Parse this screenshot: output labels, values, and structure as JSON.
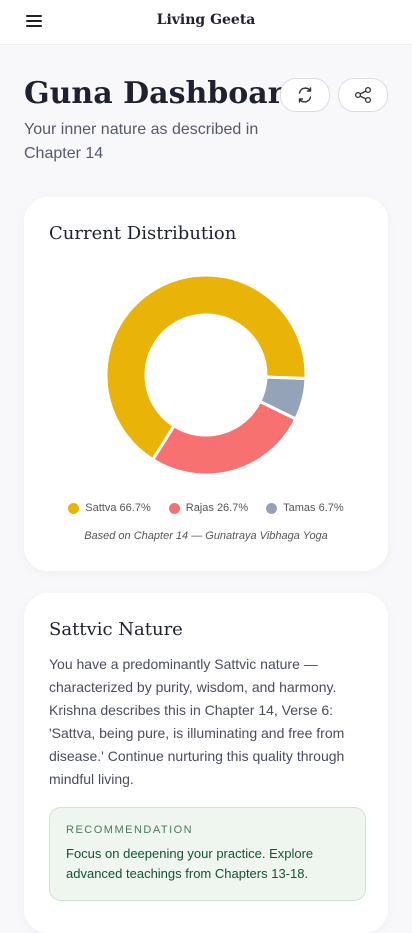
{
  "header": {
    "title": "Living Geeta"
  },
  "page": {
    "title": "Guna Dashboard",
    "subtitle": "Your inner nature as described in Chapter 14"
  },
  "chart_data": {
    "type": "pie",
    "title": "Current Distribution",
    "categories": [
      "Sattva",
      "Rajas",
      "Tamas"
    ],
    "values": [
      66.7,
      26.7,
      6.7
    ],
    "value_labels": [
      "66.7%",
      "26.7%",
      "6.7%"
    ],
    "colors": [
      "#eab308",
      "#f87171",
      "#94a3b8"
    ],
    "caption": "Based on Chapter 14 — Gunatraya Vibhaga Yoga"
  },
  "nature": {
    "title": "Sattvic Nature",
    "text": "You have a predominantly Sattvic nature — characterized by purity, wisdom, and harmony. Krishna describes this in Chapter 14, Verse 6: 'Sattva, being pure, is illuminating and free from disease.' Continue nurturing this quality through mindful living.",
    "recommendation": {
      "label": "RECOMMENDATION",
      "text": "Focus on deepening your practice. Explore advanced teachings from Chapters 13-18."
    }
  }
}
